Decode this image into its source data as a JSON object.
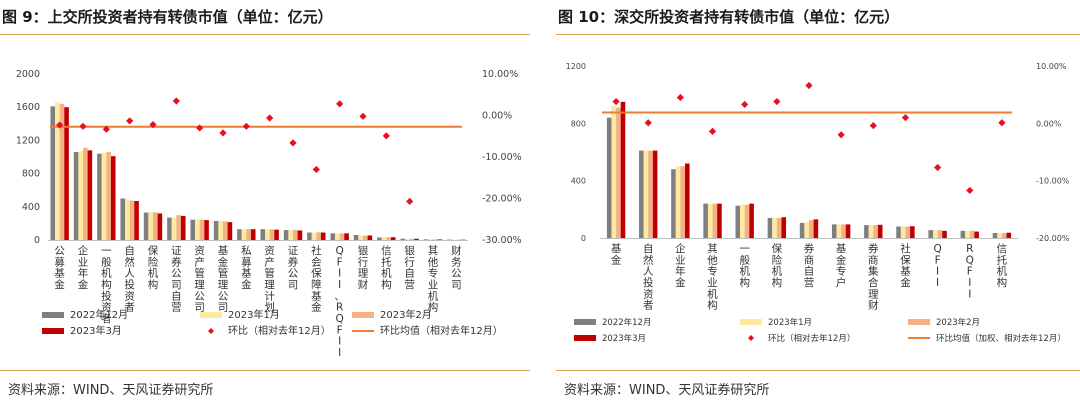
{
  "legend_labels": {
    "left": [
      "2022年12月",
      "2023年1月",
      "2023年2月",
      "2023年3月",
      "环比（相对去年12月）",
      "环比均值（相对去年12月）"
    ],
    "right": [
      "2022年12月",
      "2023年1月",
      "2023年2月",
      "2023年3月",
      "环比（相对去年12月）",
      "环比均值（加权、相对去年12月）"
    ]
  },
  "chart_data": [
    {
      "id": "left",
      "type": "bar",
      "title": "图 9：上交所投资者持有转债市值（单位：亿元）",
      "source": "资料来源：WIND、天风证券研究所",
      "categories": [
        "公募基金",
        "企业年金",
        "一般机构投资者",
        "自然人投资者",
        "保险机构",
        "证券公司自营",
        "资产管理公司",
        "基金管理公司",
        "私募基金",
        "资产管理计划",
        "证券公司",
        "社会保障基金",
        "QFII、RQFII",
        "银行理财",
        "信托机构",
        "银行自营",
        "其他专业机构",
        "财务公司"
      ],
      "series": [
        {
          "name": "2022年12月",
          "color": "#7f7f7f",
          "values": [
            1610,
            1060,
            1040,
            500,
            330,
            270,
            245,
            230,
            130,
            130,
            120,
            90,
            80,
            60,
            30,
            15,
            8,
            5
          ]
        },
        {
          "name": "2023年1月",
          "color": "#fde9a0",
          "values": [
            1660,
            1070,
            1050,
            490,
            335,
            270,
            248,
            228,
            130,
            128,
            118,
            90,
            78,
            52,
            32,
            16,
            8,
            4
          ]
        },
        {
          "name": "2023年2月",
          "color": "#f4b183",
          "values": [
            1640,
            1110,
            1060,
            475,
            335,
            300,
            246,
            225,
            132,
            128,
            120,
            92,
            80,
            52,
            33,
            15,
            8,
            4
          ]
        },
        {
          "name": "2023年3月",
          "color": "#c00000",
          "values": [
            1600,
            1080,
            1010,
            470,
            320,
            290,
            240,
            215,
            130,
            125,
            115,
            90,
            80,
            55,
            34,
            15,
            7,
            4
          ]
        }
      ],
      "ratio": {
        "name": "环比（相对去年12月）",
        "color": "#e8101c",
        "values": [
          -2.3,
          -2.6,
          -3.3,
          -1.3,
          -2.2,
          3.5,
          -3.0,
          -4.2,
          -2.6,
          -0.6,
          -6.6,
          -13.0,
          2.8,
          -0.2,
          -4.9,
          -20.7,
          null,
          null
        ]
      },
      "ratio_mean": {
        "name": "环比均值（相对去年12月）",
        "color": "#ed7d31",
        "value": -2.7
      },
      "ylim": [
        0,
        2000
      ],
      "yticks": [
        0,
        400,
        800,
        1200,
        1600,
        2000
      ],
      "y2lim": [
        -30,
        10
      ],
      "y2ticks": [
        "10.00%",
        "0.00%",
        "-10.00%",
        "-20.00%",
        "-30.00%"
      ],
      "y2tick_values": [
        10,
        0,
        -10,
        -20,
        -30
      ],
      "legend": "bottom"
    },
    {
      "id": "right",
      "type": "bar",
      "title": "图 10：深交所投资者持有转债市值（单位：亿元）",
      "source": "资料来源：WIND、天风证券研究所",
      "categories": [
        "基金",
        "自然人投资者",
        "企业年金",
        "其他专业机构",
        "一般机构",
        "保险机构",
        "券商自营",
        "基金专户",
        "券商集合理财",
        "社保基金",
        "QFII",
        "RQFII",
        "信托机构"
      ],
      "series": [
        {
          "name": "2022年12月",
          "color": "#7f7f7f",
          "values": [
            840,
            610,
            480,
            240,
            225,
            140,
            105,
            95,
            90,
            80,
            55,
            50,
            35
          ]
        },
        {
          "name": "2023年1月",
          "color": "#fde9a0",
          "values": [
            920,
            610,
            500,
            240,
            235,
            140,
            110,
            95,
            90,
            80,
            55,
            50,
            35
          ]
        },
        {
          "name": "2023年2月",
          "color": "#f4b183",
          "values": [
            910,
            610,
            500,
            240,
            232,
            140,
            125,
            95,
            90,
            80,
            55,
            50,
            35
          ]
        },
        {
          "name": "2023年3月",
          "color": "#c00000",
          "values": [
            950,
            610,
            520,
            240,
            240,
            145,
            130,
            95,
            92,
            82,
            50,
            45,
            37
          ]
        }
      ],
      "ratio": {
        "name": "环比（相对去年12月）",
        "color": "#e8101c",
        "values": [
          3.8,
          0.1,
          4.5,
          -1.4,
          3.3,
          3.8,
          6.6,
          -2.0,
          -0.4,
          1.0,
          -7.7,
          -11.7,
          0.1
        ]
      },
      "ratio_mean": {
        "name": "环比均值（加权、相对去年12月）",
        "color": "#ed7d31",
        "value": 1.9
      },
      "ylim": [
        0,
        1200
      ],
      "yticks": [
        0,
        400,
        800,
        1200
      ],
      "y2lim": [
        -20,
        10
      ],
      "y2ticks": [
        "10.00%",
        "0.00%",
        "-10.00%",
        "-20.00%"
      ],
      "y2tick_values": [
        10,
        0,
        -10,
        -20
      ],
      "legend": "bottom"
    }
  ]
}
